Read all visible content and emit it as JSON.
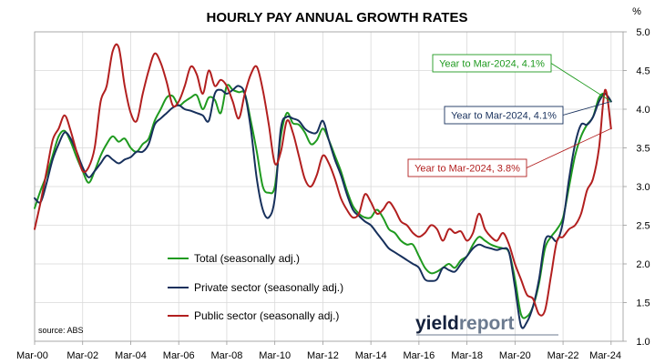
{
  "chart_data": {
    "type": "line",
    "title": "HOURLY PAY ANNUAL GROWTH RATES",
    "y_unit_label": "%",
    "ylim": [
      1.0,
      5.0
    ],
    "y_ticks": [
      "1.0",
      "1.5",
      "2.0",
      "2.5",
      "3.0",
      "3.5",
      "4.0",
      "4.5",
      "5.0"
    ],
    "x_tick_labels": [
      "Mar-00",
      "Mar-02",
      "Mar-04",
      "Mar-06",
      "Mar-08",
      "Mar-10",
      "Mar-12",
      "Mar-14",
      "Mar-16",
      "Mar-18",
      "Mar-20",
      "Mar-22",
      "Mar-24"
    ],
    "grid": true,
    "legend_position": "bottom-left",
    "source": "source: ABS",
    "logo": {
      "part1": "yield",
      "part2": "report"
    },
    "series": [
      {
        "name": "Total (seasonally adj.)",
        "color": "#1f9a1f",
        "points": [
          [
            2000.0,
            2.72
          ],
          [
            2000.25,
            2.95
          ],
          [
            2000.5,
            3.15
          ],
          [
            2000.75,
            3.4
          ],
          [
            2001.0,
            3.65
          ],
          [
            2001.25,
            3.72
          ],
          [
            2001.5,
            3.58
          ],
          [
            2001.75,
            3.38
          ],
          [
            2002.0,
            3.2
          ],
          [
            2002.25,
            3.05
          ],
          [
            2002.5,
            3.2
          ],
          [
            2002.75,
            3.4
          ],
          [
            2003.0,
            3.55
          ],
          [
            2003.25,
            3.65
          ],
          [
            2003.5,
            3.58
          ],
          [
            2003.75,
            3.62
          ],
          [
            2004.0,
            3.5
          ],
          [
            2004.25,
            3.45
          ],
          [
            2004.5,
            3.55
          ],
          [
            2004.75,
            3.62
          ],
          [
            2005.0,
            3.85
          ],
          [
            2005.25,
            4.0
          ],
          [
            2005.5,
            4.15
          ],
          [
            2005.75,
            4.17
          ],
          [
            2006.0,
            4.05
          ],
          [
            2006.25,
            4.1
          ],
          [
            2006.5,
            4.15
          ],
          [
            2006.75,
            4.18
          ],
          [
            2007.0,
            4.0
          ],
          [
            2007.25,
            4.15
          ],
          [
            2007.5,
            4.12
          ],
          [
            2007.75,
            3.95
          ],
          [
            2008.0,
            4.3
          ],
          [
            2008.25,
            4.25
          ],
          [
            2008.5,
            4.22
          ],
          [
            2008.75,
            4.2
          ],
          [
            2009.0,
            3.85
          ],
          [
            2009.25,
            3.45
          ],
          [
            2009.5,
            3.0
          ],
          [
            2009.75,
            2.92
          ],
          [
            2010.0,
            3.0
          ],
          [
            2010.25,
            3.65
          ],
          [
            2010.5,
            3.95
          ],
          [
            2010.75,
            3.82
          ],
          [
            2011.0,
            3.8
          ],
          [
            2011.25,
            3.7
          ],
          [
            2011.5,
            3.55
          ],
          [
            2011.75,
            3.6
          ],
          [
            2012.0,
            3.75
          ],
          [
            2012.25,
            3.6
          ],
          [
            2012.5,
            3.4
          ],
          [
            2012.75,
            3.2
          ],
          [
            2013.0,
            2.95
          ],
          [
            2013.25,
            2.75
          ],
          [
            2013.5,
            2.65
          ],
          [
            2013.75,
            2.6
          ],
          [
            2014.0,
            2.6
          ],
          [
            2014.25,
            2.7
          ],
          [
            2014.5,
            2.6
          ],
          [
            2014.75,
            2.45
          ],
          [
            2015.0,
            2.4
          ],
          [
            2015.25,
            2.3
          ],
          [
            2015.5,
            2.25
          ],
          [
            2015.75,
            2.25
          ],
          [
            2016.0,
            2.1
          ],
          [
            2016.25,
            1.95
          ],
          [
            2016.5,
            1.88
          ],
          [
            2016.75,
            1.9
          ],
          [
            2017.0,
            1.95
          ],
          [
            2017.25,
            2.0
          ],
          [
            2017.5,
            1.95
          ],
          [
            2017.75,
            2.05
          ],
          [
            2018.0,
            2.1
          ],
          [
            2018.25,
            2.25
          ],
          [
            2018.5,
            2.35
          ],
          [
            2018.75,
            2.3
          ],
          [
            2019.0,
            2.25
          ],
          [
            2019.25,
            2.22
          ],
          [
            2019.5,
            2.2
          ],
          [
            2019.75,
            2.15
          ],
          [
            2020.0,
            1.8
          ],
          [
            2020.25,
            1.35
          ],
          [
            2020.5,
            1.32
          ],
          [
            2020.75,
            1.45
          ],
          [
            2021.0,
            1.75
          ],
          [
            2021.25,
            2.2
          ],
          [
            2021.5,
            2.35
          ],
          [
            2021.75,
            2.45
          ],
          [
            2022.0,
            2.6
          ],
          [
            2022.25,
            3.0
          ],
          [
            2022.5,
            3.4
          ],
          [
            2022.75,
            3.65
          ],
          [
            2023.0,
            3.8
          ],
          [
            2023.25,
            3.9
          ],
          [
            2023.5,
            4.15
          ],
          [
            2023.75,
            4.2
          ],
          [
            2024.0,
            4.1
          ]
        ]
      },
      {
        "name": "Private sector (seasonally adj.)",
        "color": "#17305c",
        "points": [
          [
            2000.0,
            2.85
          ],
          [
            2000.25,
            2.8
          ],
          [
            2000.5,
            3.05
          ],
          [
            2000.75,
            3.35
          ],
          [
            2001.0,
            3.55
          ],
          [
            2001.25,
            3.7
          ],
          [
            2001.5,
            3.62
          ],
          [
            2001.75,
            3.45
          ],
          [
            2002.0,
            3.25
          ],
          [
            2002.25,
            3.12
          ],
          [
            2002.5,
            3.2
          ],
          [
            2002.75,
            3.3
          ],
          [
            2003.0,
            3.4
          ],
          [
            2003.25,
            3.35
          ],
          [
            2003.5,
            3.3
          ],
          [
            2003.75,
            3.35
          ],
          [
            2004.0,
            3.38
          ],
          [
            2004.25,
            3.45
          ],
          [
            2004.5,
            3.45
          ],
          [
            2004.75,
            3.55
          ],
          [
            2005.0,
            3.8
          ],
          [
            2005.25,
            3.88
          ],
          [
            2005.5,
            3.95
          ],
          [
            2005.75,
            4.02
          ],
          [
            2006.0,
            4.05
          ],
          [
            2006.25,
            4.0
          ],
          [
            2006.5,
            3.98
          ],
          [
            2006.75,
            3.95
          ],
          [
            2007.0,
            3.92
          ],
          [
            2007.25,
            3.85
          ],
          [
            2007.5,
            4.2
          ],
          [
            2007.75,
            4.25
          ],
          [
            2008.0,
            4.2
          ],
          [
            2008.25,
            4.25
          ],
          [
            2008.5,
            4.3
          ],
          [
            2008.75,
            4.2
          ],
          [
            2009.0,
            3.75
          ],
          [
            2009.25,
            3.1
          ],
          [
            2009.5,
            2.7
          ],
          [
            2009.75,
            2.6
          ],
          [
            2010.0,
            2.85
          ],
          [
            2010.25,
            3.75
          ],
          [
            2010.5,
            3.9
          ],
          [
            2010.75,
            3.88
          ],
          [
            2011.0,
            3.85
          ],
          [
            2011.25,
            3.75
          ],
          [
            2011.5,
            3.7
          ],
          [
            2011.75,
            3.7
          ],
          [
            2012.0,
            3.85
          ],
          [
            2012.25,
            3.6
          ],
          [
            2012.5,
            3.35
          ],
          [
            2012.75,
            3.15
          ],
          [
            2013.0,
            2.9
          ],
          [
            2013.25,
            2.7
          ],
          [
            2013.5,
            2.62
          ],
          [
            2013.75,
            2.55
          ],
          [
            2014.0,
            2.5
          ],
          [
            2014.25,
            2.4
          ],
          [
            2014.5,
            2.3
          ],
          [
            2014.75,
            2.2
          ],
          [
            2015.0,
            2.15
          ],
          [
            2015.25,
            2.1
          ],
          [
            2015.5,
            2.05
          ],
          [
            2015.75,
            2.0
          ],
          [
            2016.0,
            1.95
          ],
          [
            2016.25,
            1.8
          ],
          [
            2016.5,
            1.78
          ],
          [
            2016.75,
            1.8
          ],
          [
            2017.0,
            1.95
          ],
          [
            2017.25,
            1.92
          ],
          [
            2017.5,
            1.9
          ],
          [
            2017.75,
            2.0
          ],
          [
            2018.0,
            2.1
          ],
          [
            2018.25,
            2.2
          ],
          [
            2018.5,
            2.25
          ],
          [
            2018.75,
            2.22
          ],
          [
            2019.0,
            2.2
          ],
          [
            2019.25,
            2.18
          ],
          [
            2019.5,
            2.2
          ],
          [
            2019.75,
            2.15
          ],
          [
            2020.0,
            1.7
          ],
          [
            2020.25,
            1.2
          ],
          [
            2020.5,
            1.25
          ],
          [
            2020.75,
            1.45
          ],
          [
            2021.0,
            1.8
          ],
          [
            2021.25,
            2.3
          ],
          [
            2021.5,
            2.35
          ],
          [
            2021.75,
            2.3
          ],
          [
            2022.0,
            2.55
          ],
          [
            2022.25,
            3.1
          ],
          [
            2022.5,
            3.55
          ],
          [
            2022.75,
            3.8
          ],
          [
            2023.0,
            3.8
          ],
          [
            2023.25,
            3.9
          ],
          [
            2023.5,
            4.1
          ],
          [
            2023.75,
            4.2
          ],
          [
            2024.0,
            4.1
          ]
        ]
      },
      {
        "name": "Public sector (seasonally adj.)",
        "color": "#b21f1f",
        "points": [
          [
            2000.0,
            2.45
          ],
          [
            2000.25,
            2.8
          ],
          [
            2000.5,
            3.2
          ],
          [
            2000.75,
            3.6
          ],
          [
            2001.0,
            3.75
          ],
          [
            2001.25,
            3.92
          ],
          [
            2001.5,
            3.72
          ],
          [
            2001.75,
            3.45
          ],
          [
            2002.0,
            3.2
          ],
          [
            2002.25,
            3.25
          ],
          [
            2002.5,
            3.5
          ],
          [
            2002.75,
            4.1
          ],
          [
            2003.0,
            4.3
          ],
          [
            2003.25,
            4.75
          ],
          [
            2003.5,
            4.8
          ],
          [
            2003.75,
            4.3
          ],
          [
            2004.0,
            3.95
          ],
          [
            2004.25,
            3.85
          ],
          [
            2004.5,
            4.2
          ],
          [
            2004.75,
            4.5
          ],
          [
            2005.0,
            4.72
          ],
          [
            2005.25,
            4.6
          ],
          [
            2005.5,
            4.35
          ],
          [
            2005.75,
            4.05
          ],
          [
            2006.0,
            4.1
          ],
          [
            2006.25,
            4.3
          ],
          [
            2006.5,
            4.55
          ],
          [
            2006.75,
            4.45
          ],
          [
            2007.0,
            4.2
          ],
          [
            2007.25,
            4.5
          ],
          [
            2007.5,
            4.3
          ],
          [
            2007.75,
            4.38
          ],
          [
            2008.0,
            4.3
          ],
          [
            2008.25,
            4.1
          ],
          [
            2008.5,
            3.88
          ],
          [
            2008.75,
            4.2
          ],
          [
            2009.0,
            4.45
          ],
          [
            2009.25,
            4.55
          ],
          [
            2009.5,
            4.25
          ],
          [
            2009.75,
            3.8
          ],
          [
            2010.0,
            3.3
          ],
          [
            2010.25,
            3.45
          ],
          [
            2010.5,
            3.85
          ],
          [
            2010.75,
            3.7
          ],
          [
            2011.0,
            3.4
          ],
          [
            2011.25,
            3.1
          ],
          [
            2011.5,
            3.0
          ],
          [
            2011.75,
            3.15
          ],
          [
            2012.0,
            3.4
          ],
          [
            2012.25,
            3.3
          ],
          [
            2012.5,
            3.1
          ],
          [
            2012.75,
            2.85
          ],
          [
            2013.0,
            2.7
          ],
          [
            2013.25,
            2.6
          ],
          [
            2013.5,
            2.65
          ],
          [
            2013.75,
            2.9
          ],
          [
            2014.0,
            2.8
          ],
          [
            2014.25,
            2.65
          ],
          [
            2014.5,
            2.7
          ],
          [
            2014.75,
            2.8
          ],
          [
            2015.0,
            2.7
          ],
          [
            2015.25,
            2.55
          ],
          [
            2015.5,
            2.5
          ],
          [
            2015.75,
            2.4
          ],
          [
            2016.0,
            2.35
          ],
          [
            2016.25,
            2.4
          ],
          [
            2016.5,
            2.5
          ],
          [
            2016.75,
            2.45
          ],
          [
            2017.0,
            2.3
          ],
          [
            2017.25,
            2.45
          ],
          [
            2017.5,
            2.4
          ],
          [
            2017.75,
            2.42
          ],
          [
            2018.0,
            2.3
          ],
          [
            2018.25,
            2.4
          ],
          [
            2018.5,
            2.65
          ],
          [
            2018.75,
            2.45
          ],
          [
            2019.0,
            2.35
          ],
          [
            2019.25,
            2.3
          ],
          [
            2019.5,
            2.4
          ],
          [
            2019.75,
            2.25
          ],
          [
            2020.0,
            2.0
          ],
          [
            2020.25,
            1.8
          ],
          [
            2020.5,
            1.6
          ],
          [
            2020.75,
            1.55
          ],
          [
            2021.0,
            1.35
          ],
          [
            2021.25,
            1.4
          ],
          [
            2021.5,
            1.85
          ],
          [
            2021.75,
            2.3
          ],
          [
            2022.0,
            2.35
          ],
          [
            2022.25,
            2.45
          ],
          [
            2022.5,
            2.5
          ],
          [
            2022.75,
            2.65
          ],
          [
            2023.0,
            2.95
          ],
          [
            2023.25,
            3.1
          ],
          [
            2023.5,
            3.5
          ],
          [
            2023.75,
            4.25
          ],
          [
            2024.0,
            3.75
          ]
        ]
      }
    ],
    "annotations": [
      {
        "text": "Year to Mar-2024, 4.1%",
        "series": "Total (seasonally adj.)",
        "color": "#1f9a1f",
        "target": [
          2024.0,
          4.1
        ]
      },
      {
        "text": "Year to Mar-2024, 4.1%",
        "series": "Private sector (seasonally adj.)",
        "color": "#17305c",
        "target": [
          2024.0,
          4.1
        ]
      },
      {
        "text": "Year to Mar-2024, 3.8%",
        "series": "Public sector (seasonally adj.)",
        "color": "#b21f1f",
        "target": [
          2024.0,
          3.75
        ]
      }
    ]
  }
}
